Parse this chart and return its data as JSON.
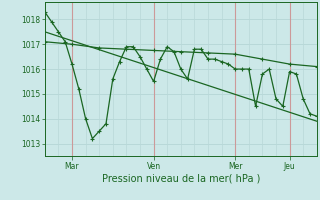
{
  "background_color": "#cce8e8",
  "grid_color": "#b8d8d8",
  "line_color": "#1a6622",
  "vline_color": "#cc9999",
  "xlabel": "Pression niveau de la mer( hPa )",
  "ylim": [
    1012.5,
    1018.7
  ],
  "yticks": [
    1013,
    1014,
    1015,
    1016,
    1017,
    1018
  ],
  "xlim": [
    0,
    240
  ],
  "xtick_positions": [
    24,
    96,
    168,
    216
  ],
  "xtick_labels": [
    "Mar",
    "Ven",
    "Mer",
    "Jeu"
  ],
  "x_vlines": [
    24,
    96,
    168,
    216
  ],
  "series1_x": [
    0,
    6,
    12,
    18,
    24,
    30,
    36,
    42,
    48,
    54,
    60,
    66,
    72,
    78,
    84,
    90,
    96,
    102,
    108,
    114,
    120,
    126,
    132,
    138,
    144,
    150,
    156,
    162,
    168,
    174,
    180,
    186,
    192,
    198,
    204,
    210,
    216,
    222,
    228,
    234,
    240
  ],
  "series1_y": [
    1018.3,
    1017.9,
    1017.5,
    1017.1,
    1016.2,
    1015.2,
    1014.0,
    1013.2,
    1013.5,
    1013.8,
    1015.6,
    1016.3,
    1016.9,
    1016.9,
    1016.5,
    1016.0,
    1015.5,
    1016.4,
    1016.9,
    1016.7,
    1016.0,
    1015.6,
    1016.8,
    1016.8,
    1016.4,
    1016.4,
    1016.3,
    1016.2,
    1016.0,
    1016.0,
    1016.0,
    1014.5,
    1015.8,
    1016.0,
    1014.8,
    1014.5,
    1015.9,
    1015.8,
    1014.8,
    1014.2,
    1014.1
  ],
  "series2_x": [
    0,
    24,
    48,
    72,
    96,
    120,
    144,
    168,
    192,
    216,
    240
  ],
  "series2_y": [
    1017.1,
    1017.0,
    1016.85,
    1016.8,
    1016.75,
    1016.7,
    1016.65,
    1016.6,
    1016.4,
    1016.2,
    1016.1
  ],
  "trend_x": [
    0,
    240
  ],
  "trend_y": [
    1017.5,
    1013.9
  ]
}
